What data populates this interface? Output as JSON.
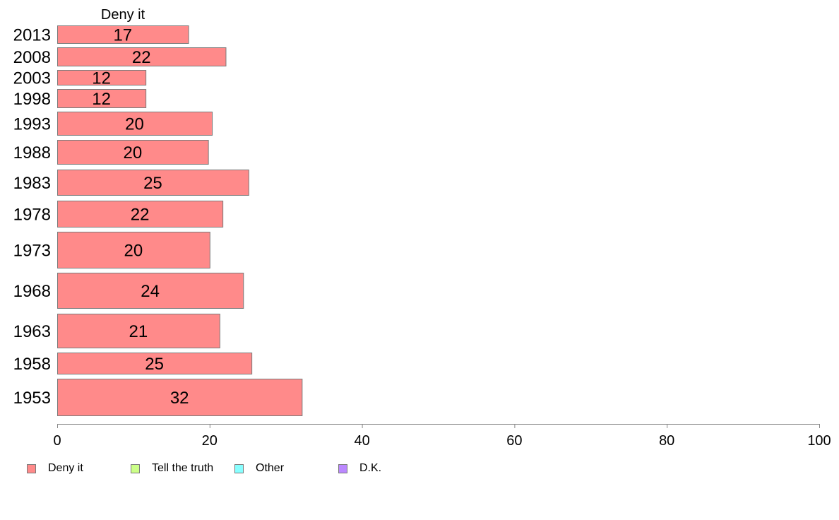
{
  "chart_data": {
    "type": "bar",
    "orientation": "horizontal",
    "title": "Deny it",
    "categories": [
      "2013",
      "2008",
      "2003",
      "1998",
      "1993",
      "1988",
      "1983",
      "1978",
      "1973",
      "1968",
      "1963",
      "1958",
      "1953"
    ],
    "series": [
      {
        "name": "Deny it",
        "color": "#ff8a8a",
        "values": [
          17.2,
          22.1,
          11.6,
          11.6,
          20.3,
          19.8,
          25.1,
          21.7,
          20.0,
          24.4,
          21.3,
          25.5,
          32.1
        ],
        "labels": [
          "17",
          "22",
          "12",
          "12",
          "20",
          "20",
          "25",
          "22",
          "20",
          "24",
          "21",
          "25",
          "32"
        ]
      }
    ],
    "xlim": [
      0,
      100
    ],
    "x_ticks": [
      "0",
      "20",
      "40",
      "60",
      "80",
      "100"
    ],
    "grid": false,
    "legend_position": "bottom",
    "legend": [
      {
        "label": "Deny it",
        "color": "#ff8a8a"
      },
      {
        "label": "Tell the truth",
        "color": "#ccff88"
      },
      {
        "label": "Other",
        "color": "#88ffff"
      },
      {
        "label": "D.K.",
        "color": "#bb88ff"
      }
    ]
  }
}
